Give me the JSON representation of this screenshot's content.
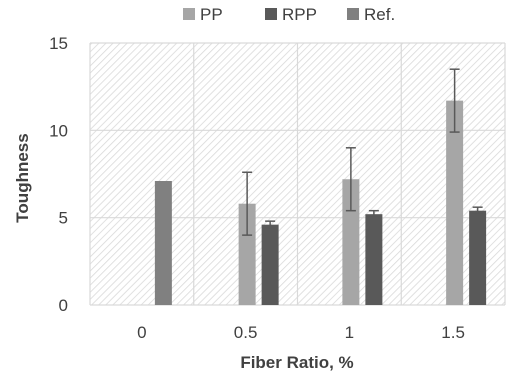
{
  "chart_data": {
    "type": "bar",
    "title": "",
    "xlabel": "Fiber Ratio, %",
    "ylabel": "Toughness",
    "categories": [
      "0",
      "0.5",
      "1",
      "1.5"
    ],
    "ylim": [
      0,
      15
    ],
    "yticks": [
      "0",
      "5",
      "10",
      "15"
    ],
    "grid": true,
    "plot_background": "diagonal-hatch",
    "legend": {
      "position": "top",
      "entries": [
        "PP",
        "RPP",
        "Ref."
      ]
    },
    "series": [
      {
        "name": "PP",
        "color": "#a6a6a6",
        "values": [
          null,
          5.8,
          7.2,
          11.7
        ],
        "error": [
          null,
          1.8,
          1.8,
          1.8
        ]
      },
      {
        "name": "RPP",
        "color": "#595959",
        "values": [
          null,
          4.6,
          5.2,
          5.4
        ],
        "error": [
          null,
          0.2,
          0.2,
          0.2
        ]
      },
      {
        "name": "Ref.",
        "color": "#808080",
        "values": [
          7.1,
          null,
          null,
          null
        ],
        "error": [
          null,
          null,
          null,
          null
        ]
      }
    ]
  }
}
